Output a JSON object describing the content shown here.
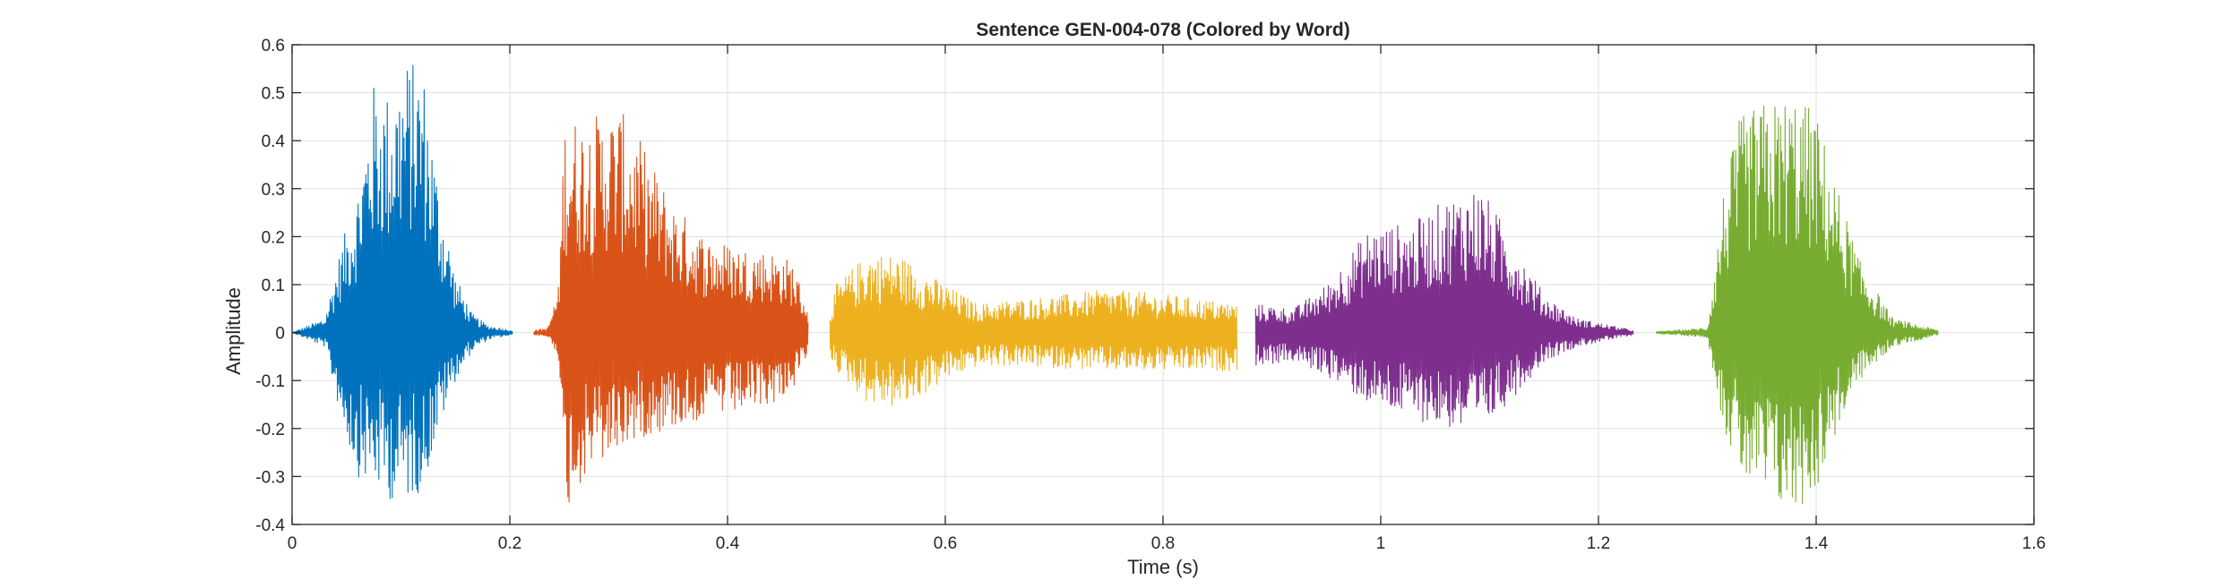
{
  "chart_data": {
    "type": "line",
    "title": "Sentence GEN-004-078 (Colored by Word)",
    "xlabel": "Time (s)",
    "ylabel": "Amplitude",
    "xlim": [
      0,
      1.6
    ],
    "ylim": [
      -0.4,
      0.6
    ],
    "grid": true,
    "x_ticks": [
      0,
      0.2,
      0.4,
      0.6,
      0.8,
      1,
      1.2,
      1.4,
      1.6
    ],
    "x_tick_labels": [
      "0",
      "0.2",
      "0.4",
      "0.6",
      "0.8",
      "1",
      "1.2",
      "1.4",
      "1.6"
    ],
    "y_ticks": [
      -0.4,
      -0.3,
      -0.2,
      -0.1,
      0,
      0.1,
      0.2,
      0.3,
      0.4,
      0.5,
      0.6
    ],
    "y_tick_labels": [
      "-0.4",
      "-0.3",
      "-0.2",
      "-0.1",
      "0",
      "0.1",
      "0.2",
      "0.3",
      "0.4",
      "0.5",
      "0.6"
    ],
    "series": [
      {
        "color": "#0072BD",
        "start": 0.0,
        "end": 0.2025,
        "envelope": [
          [
            0.0,
            0.0,
            0.0
          ],
          [
            0.03,
            0.03,
            -0.03
          ],
          [
            0.045,
            0.18,
            -0.18
          ],
          [
            0.06,
            0.3,
            -0.3
          ],
          [
            0.075,
            0.52,
            -0.32
          ],
          [
            0.09,
            0.5,
            -0.35
          ],
          [
            0.105,
            0.57,
            -0.35
          ],
          [
            0.12,
            0.56,
            -0.33
          ],
          [
            0.135,
            0.3,
            -0.2
          ],
          [
            0.15,
            0.12,
            -0.1
          ],
          [
            0.165,
            0.04,
            -0.04
          ],
          [
            0.18,
            0.015,
            -0.015
          ],
          [
            0.2025,
            0.005,
            -0.005
          ]
        ]
      },
      {
        "color": "#D95319",
        "start": 0.222,
        "end": 0.474,
        "envelope": [
          [
            0.222,
            0.005,
            -0.005
          ],
          [
            0.235,
            0.01,
            -0.01
          ],
          [
            0.245,
            0.1,
            -0.05
          ],
          [
            0.25,
            0.45,
            -0.38
          ],
          [
            0.27,
            0.45,
            -0.3
          ],
          [
            0.3,
            0.47,
            -0.25
          ],
          [
            0.32,
            0.4,
            -0.22
          ],
          [
            0.35,
            0.27,
            -0.2
          ],
          [
            0.38,
            0.2,
            -0.18
          ],
          [
            0.41,
            0.18,
            -0.17
          ],
          [
            0.44,
            0.17,
            -0.15
          ],
          [
            0.46,
            0.15,
            -0.12
          ],
          [
            0.474,
            0.05,
            -0.05
          ]
        ]
      },
      {
        "color": "#EDB120",
        "start": 0.494,
        "end": 0.868,
        "envelope": [
          [
            0.494,
            0.05,
            -0.05
          ],
          [
            0.5,
            0.1,
            -0.08
          ],
          [
            0.53,
            0.17,
            -0.15
          ],
          [
            0.56,
            0.16,
            -0.16
          ],
          [
            0.6,
            0.1,
            -0.1
          ],
          [
            0.63,
            0.06,
            -0.07
          ],
          [
            0.67,
            0.07,
            -0.07
          ],
          [
            0.75,
            0.09,
            -0.08
          ],
          [
            0.8,
            0.08,
            -0.08
          ],
          [
            0.868,
            0.06,
            -0.08
          ]
        ]
      },
      {
        "color": "#7E2F8E",
        "start": 0.885,
        "end": 1.232,
        "envelope": [
          [
            0.885,
            0.06,
            -0.07
          ],
          [
            0.92,
            0.05,
            -0.06
          ],
          [
            0.95,
            0.1,
            -0.09
          ],
          [
            0.99,
            0.22,
            -0.15
          ],
          [
            1.03,
            0.23,
            -0.18
          ],
          [
            1.06,
            0.28,
            -0.2
          ],
          [
            1.09,
            0.31,
            -0.21
          ],
          [
            1.12,
            0.2,
            -0.14
          ],
          [
            1.15,
            0.08,
            -0.06
          ],
          [
            1.18,
            0.03,
            -0.03
          ],
          [
            1.232,
            0.005,
            -0.005
          ]
        ]
      },
      {
        "color": "#77AC30",
        "start": 1.253,
        "end": 1.512,
        "envelope": [
          [
            1.253,
            0.002,
            -0.002
          ],
          [
            1.3,
            0.01,
            -0.01
          ],
          [
            1.315,
            0.3,
            -0.2
          ],
          [
            1.33,
            0.45,
            -0.3
          ],
          [
            1.35,
            0.48,
            -0.35
          ],
          [
            1.38,
            0.5,
            -0.38
          ],
          [
            1.4,
            0.46,
            -0.33
          ],
          [
            1.42,
            0.3,
            -0.2
          ],
          [
            1.44,
            0.15,
            -0.1
          ],
          [
            1.47,
            0.03,
            -0.03
          ],
          [
            1.512,
            0.005,
            -0.005
          ]
        ]
      }
    ]
  }
}
